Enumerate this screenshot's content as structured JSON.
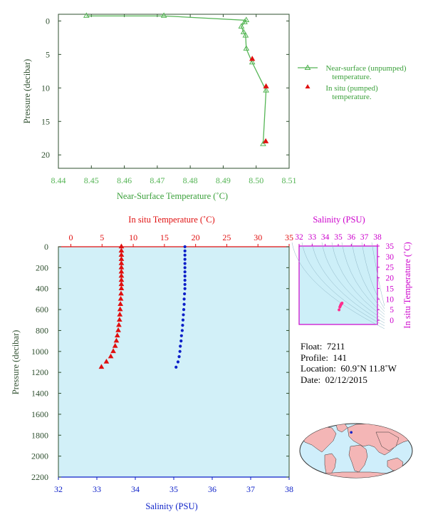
{
  "colors": {
    "near_surface": "#55b555",
    "in_situ_temp": "#e01010",
    "salinity": "#0b1fc8",
    "salinity_axis": "#cc00cc",
    "axis_dark": "#2f4f2f",
    "plot_bg": "#d2f0f8",
    "ts_bg": "#cdeff8",
    "land": "#f4b6b6",
    "ocean": "#cfeefb"
  },
  "chart_data": [
    {
      "type": "line",
      "xlabel": "Near-Surface Temperature (˚C)",
      "ylabel": "Pressure (decibar)",
      "xlim": [
        8.44,
        8.51
      ],
      "ylim": [
        22,
        -1
      ],
      "xticks": [
        "8.44",
        "8.45",
        "8.46",
        "8.47",
        "8.48",
        "8.49",
        "8.50",
        "8.51"
      ],
      "yticks": [
        "0",
        "5",
        "10",
        "15",
        "20"
      ],
      "series": [
        {
          "name": "Near-surface (unpumped) temperature.",
          "name_lines": [
            "Near-surface (unpumped)",
            "temperature."
          ],
          "marker": "triangle-open",
          "points": [
            [
              8.4485,
              -0.75
            ],
            [
              8.472,
              -0.75
            ],
            [
              8.497,
              -0.1
            ],
            [
              8.4965,
              0.2
            ],
            [
              8.4955,
              0.85
            ],
            [
              8.4962,
              1.7
            ],
            [
              8.4968,
              2.2
            ],
            [
              8.497,
              4.15
            ],
            [
              8.4988,
              6.2
            ],
            [
              8.503,
              10.4
            ],
            [
              8.5021,
              18.4
            ]
          ]
        },
        {
          "name": "In situ (pumped) temperature.",
          "name_lines": [
            "In situ (pumped)",
            "temperature."
          ],
          "marker": "triangle-filled",
          "points": [
            [
              8.4988,
              5.7
            ],
            [
              8.503,
              9.8
            ],
            [
              8.5029,
              18.0
            ]
          ]
        }
      ]
    },
    {
      "type": "scatter",
      "top_xlabel": "In situ Temperature (˚C)",
      "bottom_xlabel": "Salinity (PSU)",
      "ylabel": "Pressure (decibar)",
      "temp_xlim": [
        -2,
        35
      ],
      "sal_xlim": [
        32,
        38
      ],
      "ylim": [
        2200,
        0
      ],
      "temp_ticks": [
        "0",
        "5",
        "10",
        "15",
        "20",
        "25",
        "30",
        "35"
      ],
      "sal_ticks": [
        "32",
        "33",
        "34",
        "35",
        "36",
        "37",
        "38"
      ],
      "pressure_ticks": [
        "0",
        "200",
        "400",
        "600",
        "800",
        "1000",
        "1200",
        "1400",
        "1600",
        "1800",
        "2000",
        "2200"
      ],
      "temperature_profile": [
        [
          8.1,
          0
        ],
        [
          8.1,
          40
        ],
        [
          8.1,
          80
        ],
        [
          8.1,
          120
        ],
        [
          8.1,
          160
        ],
        [
          8.1,
          200
        ],
        [
          8.1,
          240
        ],
        [
          8.1,
          280
        ],
        [
          8.1,
          320
        ],
        [
          8.1,
          360
        ],
        [
          8.1,
          400
        ],
        [
          8.05,
          450
        ],
        [
          8.0,
          500
        ],
        [
          7.95,
          550
        ],
        [
          7.9,
          600
        ],
        [
          7.85,
          650
        ],
        [
          7.8,
          700
        ],
        [
          7.7,
          750
        ],
        [
          7.6,
          800
        ],
        [
          7.45,
          850
        ],
        [
          7.3,
          900
        ],
        [
          7.1,
          950
        ],
        [
          6.8,
          1000
        ],
        [
          6.4,
          1050
        ],
        [
          5.7,
          1100
        ],
        [
          4.9,
          1150
        ]
      ],
      "salinity_profile": [
        [
          35.29,
          0
        ],
        [
          35.29,
          40
        ],
        [
          35.29,
          80
        ],
        [
          35.29,
          120
        ],
        [
          35.29,
          160
        ],
        [
          35.29,
          200
        ],
        [
          35.29,
          240
        ],
        [
          35.29,
          280
        ],
        [
          35.29,
          320
        ],
        [
          35.29,
          360
        ],
        [
          35.29,
          400
        ],
        [
          35.28,
          450
        ],
        [
          35.27,
          500
        ],
        [
          35.27,
          550
        ],
        [
          35.26,
          600
        ],
        [
          35.25,
          650
        ],
        [
          35.24,
          700
        ],
        [
          35.23,
          750
        ],
        [
          35.22,
          800
        ],
        [
          35.2,
          850
        ],
        [
          35.19,
          900
        ],
        [
          35.17,
          950
        ],
        [
          35.16,
          1000
        ],
        [
          35.14,
          1050
        ],
        [
          35.11,
          1100
        ],
        [
          35.06,
          1150
        ]
      ]
    },
    {
      "type": "scatter",
      "xlabel": "Salinity (PSU)",
      "ylabel": "In situ Temperature (˚C)",
      "xlim": [
        32,
        38
      ],
      "ylim": [
        -2,
        35
      ],
      "xticks": [
        "32",
        "33",
        "34",
        "35",
        "36",
        "37",
        "38"
      ],
      "yticks": [
        "0",
        "5",
        "10",
        "15",
        "20",
        "25",
        "30",
        "35"
      ],
      "points": [
        [
          35.29,
          8.1
        ],
        [
          35.27,
          7.95
        ],
        [
          35.25,
          7.8
        ],
        [
          35.22,
          7.55
        ],
        [
          35.19,
          7.2
        ],
        [
          35.16,
          6.8
        ],
        [
          35.12,
          6.2
        ],
        [
          35.06,
          4.9
        ]
      ]
    }
  ],
  "info": {
    "float_label": "Float:",
    "float": "7211",
    "profile_label": "Profile:",
    "profile": "141",
    "location_label": "Location:",
    "location": "60.9˚N  11.8˚W",
    "date_label": "Date:",
    "date": "02/12/2015"
  },
  "map": {
    "float_lat": 60.9,
    "float_lon": -11.8
  }
}
